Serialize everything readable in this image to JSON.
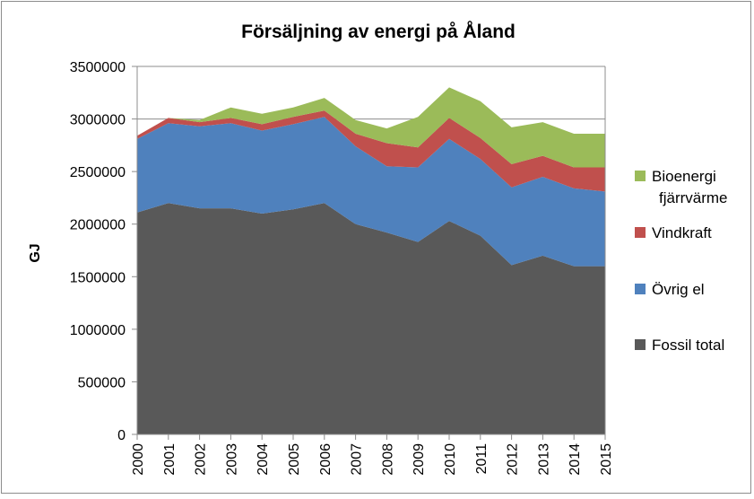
{
  "chart_data": {
    "type": "area",
    "stacked": true,
    "title": "Försäljning  av energi på Åland",
    "xlabel": "",
    "ylabel": "GJ",
    "x": [
      "2000",
      "2001",
      "2002",
      "2003",
      "2004",
      "2005",
      "2006",
      "2007",
      "2008",
      "2009",
      "2010",
      "2011",
      "2012",
      "2013",
      "2014",
      "2015"
    ],
    "ylim": [
      0,
      3500000
    ],
    "yticks": [
      0,
      500000,
      1000000,
      1500000,
      2000000,
      2500000,
      3000000,
      3500000
    ],
    "ytick_labels": [
      "0",
      "500000",
      "1000000",
      "1500000",
      "2000000",
      "2500000",
      "3000000",
      "3500000"
    ],
    "grid": "horizontal",
    "legend_position": "right",
    "series": [
      {
        "name": "Fossil total",
        "color": "#595959",
        "values": [
          2110000,
          2200000,
          2150000,
          2150000,
          2100000,
          2140000,
          2200000,
          2000000,
          1920000,
          1830000,
          2030000,
          1890000,
          1610000,
          1700000,
          1600000,
          1600000
        ]
      },
      {
        "name": "Övrig el",
        "color": "#4f81bd",
        "values": [
          700000,
          760000,
          780000,
          810000,
          790000,
          810000,
          820000,
          740000,
          630000,
          710000,
          780000,
          730000,
          740000,
          750000,
          740000,
          710000
        ]
      },
      {
        "name": "Vindkraft",
        "color": "#c0504d",
        "values": [
          30000,
          50000,
          40000,
          50000,
          60000,
          70000,
          60000,
          120000,
          220000,
          190000,
          200000,
          200000,
          220000,
          200000,
          200000,
          230000
        ]
      },
      {
        "name": "Bioenergi fjärrvärme",
        "name_lines": [
          "Bioenergi",
          "fjärrvärme"
        ],
        "color": "#9bbb59",
        "values": [
          0,
          0,
          20000,
          100000,
          100000,
          90000,
          120000,
          130000,
          140000,
          290000,
          290000,
          350000,
          350000,
          320000,
          320000,
          320000
        ]
      }
    ]
  }
}
